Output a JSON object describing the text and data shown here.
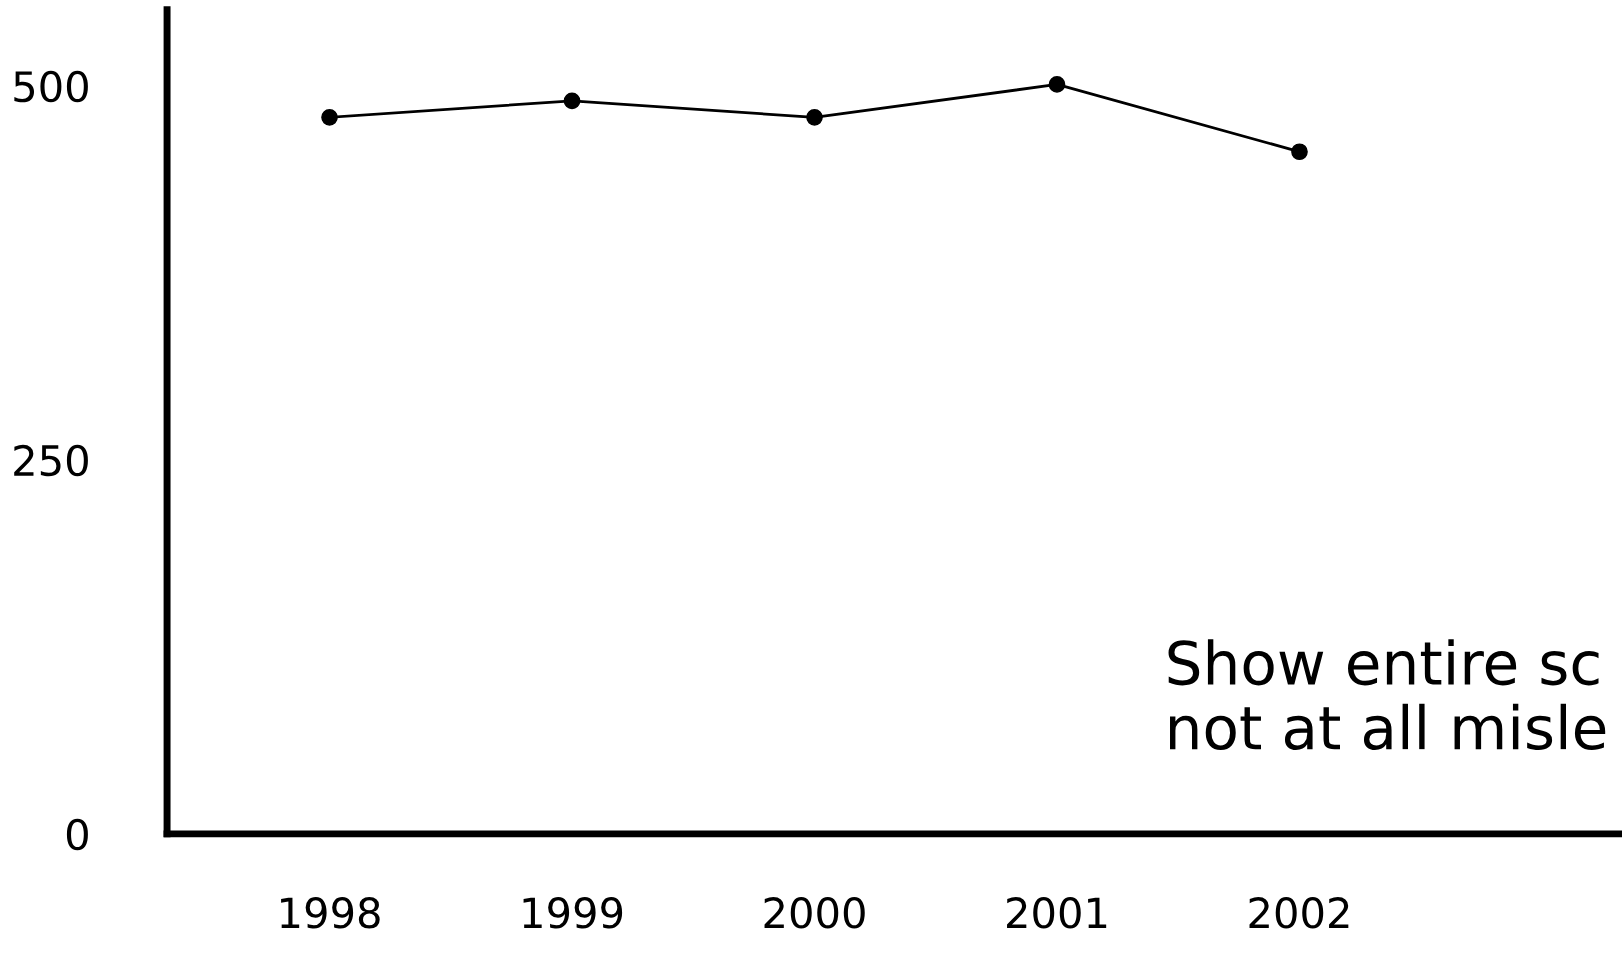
{
  "chart_data": {
    "type": "line",
    "categories": [
      "1998",
      "1999",
      "2000",
      "2001",
      "2002"
    ],
    "series": [
      {
        "color": "#000000",
        "values": [
          479,
          490,
          479,
          501,
          456
        ]
      }
    ],
    "ylim": [
      0,
      551
    ],
    "yticks": [
      0,
      250,
      500
    ],
    "grid": false,
    "marker": "circle",
    "line_style": "solid",
    "annotations": [
      "Show entire sc\nnot at all misle"
    ]
  }
}
